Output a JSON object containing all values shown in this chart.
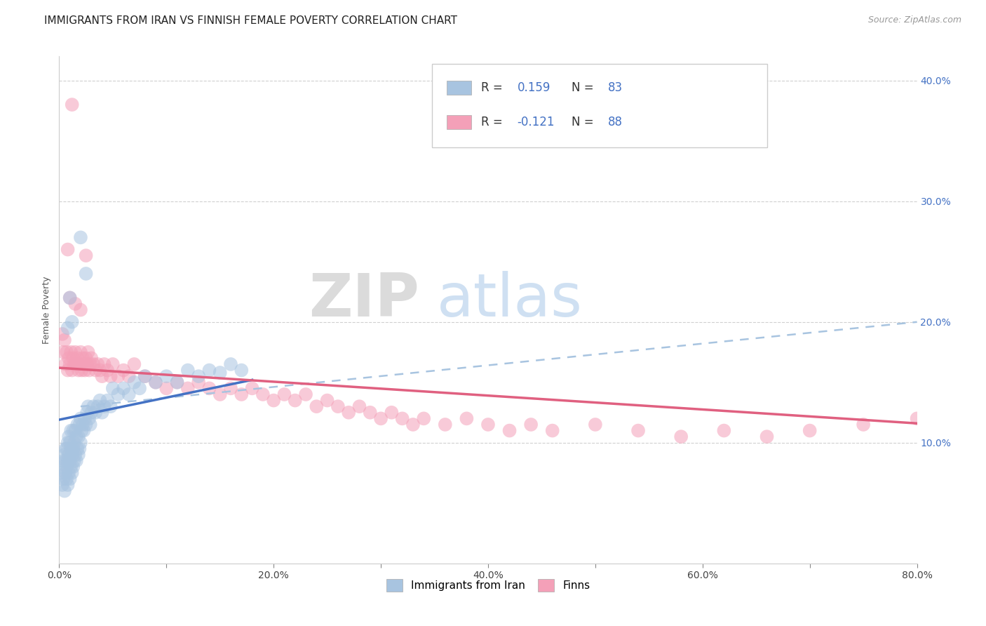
{
  "title": "IMMIGRANTS FROM IRAN VS FINNISH FEMALE POVERTY CORRELATION CHART",
  "source": "Source: ZipAtlas.com",
  "ylabel": "Female Poverty",
  "xlim": [
    0.0,
    0.8
  ],
  "ylim": [
    0.0,
    0.42
  ],
  "xticks": [
    0.0,
    0.1,
    0.2,
    0.3,
    0.4,
    0.5,
    0.6,
    0.7,
    0.8
  ],
  "xticklabels": [
    "0.0%",
    "",
    "20.0%",
    "",
    "40.0%",
    "",
    "60.0%",
    "",
    "80.0%"
  ],
  "yticks_right": [
    0.1,
    0.2,
    0.3,
    0.4
  ],
  "ytick_right_labels": [
    "10.0%",
    "20.0%",
    "30.0%",
    "40.0%"
  ],
  "color_iran": "#a8c4e0",
  "color_finns": "#f4a0b8",
  "color_iran_line": "#4472c4",
  "color_finns_line": "#e06080",
  "color_dashed": "#a8c4e0",
  "watermark_zip": "ZIP",
  "watermark_atlas": "atlas",
  "background_color": "#ffffff",
  "grid_color": "#d0d0d0",
  "iran_scatter_x": [
    0.002,
    0.003,
    0.003,
    0.004,
    0.004,
    0.005,
    0.005,
    0.006,
    0.006,
    0.006,
    0.007,
    0.007,
    0.007,
    0.008,
    0.008,
    0.008,
    0.009,
    0.009,
    0.009,
    0.01,
    0.01,
    0.01,
    0.011,
    0.011,
    0.011,
    0.012,
    0.012,
    0.013,
    0.013,
    0.013,
    0.014,
    0.014,
    0.015,
    0.015,
    0.016,
    0.016,
    0.017,
    0.017,
    0.018,
    0.018,
    0.019,
    0.019,
    0.02,
    0.02,
    0.021,
    0.022,
    0.023,
    0.024,
    0.025,
    0.026,
    0.027,
    0.028,
    0.029,
    0.03,
    0.032,
    0.034,
    0.036,
    0.038,
    0.04,
    0.042,
    0.045,
    0.048,
    0.05,
    0.055,
    0.06,
    0.065,
    0.07,
    0.075,
    0.08,
    0.09,
    0.1,
    0.11,
    0.12,
    0.13,
    0.14,
    0.15,
    0.16,
    0.17,
    0.02,
    0.025,
    0.008,
    0.01,
    0.012
  ],
  "iran_scatter_y": [
    0.075,
    0.065,
    0.08,
    0.07,
    0.085,
    0.06,
    0.09,
    0.075,
    0.085,
    0.095,
    0.07,
    0.08,
    0.095,
    0.065,
    0.085,
    0.1,
    0.075,
    0.09,
    0.105,
    0.07,
    0.085,
    0.1,
    0.08,
    0.095,
    0.11,
    0.075,
    0.09,
    0.08,
    0.095,
    0.11,
    0.085,
    0.1,
    0.09,
    0.11,
    0.085,
    0.105,
    0.095,
    0.115,
    0.09,
    0.105,
    0.095,
    0.115,
    0.1,
    0.12,
    0.11,
    0.115,
    0.11,
    0.12,
    0.115,
    0.125,
    0.13,
    0.12,
    0.115,
    0.125,
    0.13,
    0.125,
    0.13,
    0.135,
    0.125,
    0.13,
    0.135,
    0.13,
    0.145,
    0.14,
    0.145,
    0.14,
    0.15,
    0.145,
    0.155,
    0.15,
    0.155,
    0.15,
    0.16,
    0.155,
    0.16,
    0.158,
    0.165,
    0.16,
    0.27,
    0.24,
    0.195,
    0.22,
    0.2
  ],
  "finns_scatter_x": [
    0.003,
    0.004,
    0.005,
    0.006,
    0.007,
    0.008,
    0.009,
    0.01,
    0.011,
    0.012,
    0.013,
    0.014,
    0.015,
    0.016,
    0.017,
    0.018,
    0.019,
    0.02,
    0.021,
    0.022,
    0.023,
    0.024,
    0.025,
    0.026,
    0.027,
    0.028,
    0.029,
    0.03,
    0.032,
    0.034,
    0.036,
    0.038,
    0.04,
    0.042,
    0.045,
    0.048,
    0.05,
    0.055,
    0.06,
    0.065,
    0.07,
    0.08,
    0.09,
    0.1,
    0.11,
    0.12,
    0.13,
    0.14,
    0.15,
    0.16,
    0.17,
    0.18,
    0.19,
    0.2,
    0.21,
    0.22,
    0.23,
    0.24,
    0.25,
    0.26,
    0.27,
    0.28,
    0.29,
    0.3,
    0.31,
    0.32,
    0.33,
    0.34,
    0.36,
    0.38,
    0.4,
    0.42,
    0.44,
    0.46,
    0.5,
    0.54,
    0.58,
    0.62,
    0.66,
    0.7,
    0.75,
    0.8,
    0.01,
    0.015,
    0.02,
    0.025,
    0.012,
    0.008
  ],
  "finns_scatter_y": [
    0.19,
    0.175,
    0.185,
    0.165,
    0.175,
    0.16,
    0.17,
    0.165,
    0.175,
    0.16,
    0.17,
    0.165,
    0.175,
    0.165,
    0.17,
    0.16,
    0.165,
    0.175,
    0.16,
    0.17,
    0.165,
    0.16,
    0.17,
    0.165,
    0.175,
    0.16,
    0.165,
    0.17,
    0.165,
    0.16,
    0.165,
    0.16,
    0.155,
    0.165,
    0.16,
    0.155,
    0.165,
    0.155,
    0.16,
    0.155,
    0.165,
    0.155,
    0.15,
    0.145,
    0.15,
    0.145,
    0.15,
    0.145,
    0.14,
    0.145,
    0.14,
    0.145,
    0.14,
    0.135,
    0.14,
    0.135,
    0.14,
    0.13,
    0.135,
    0.13,
    0.125,
    0.13,
    0.125,
    0.12,
    0.125,
    0.12,
    0.115,
    0.12,
    0.115,
    0.12,
    0.115,
    0.11,
    0.115,
    0.11,
    0.115,
    0.11,
    0.105,
    0.11,
    0.105,
    0.11,
    0.115,
    0.12,
    0.22,
    0.215,
    0.21,
    0.255,
    0.38,
    0.26
  ],
  "iran_line_x0": 0.0,
  "iran_line_y0": 0.119,
  "iran_line_x1": 0.18,
  "iran_line_y1": 0.152,
  "finns_line_x0": 0.0,
  "finns_line_y0": 0.162,
  "finns_line_x1": 0.8,
  "finns_line_y1": 0.116,
  "dashed_line_x0": 0.02,
  "dashed_line_y0": 0.13,
  "dashed_line_x1": 0.8,
  "dashed_line_y1": 0.2
}
